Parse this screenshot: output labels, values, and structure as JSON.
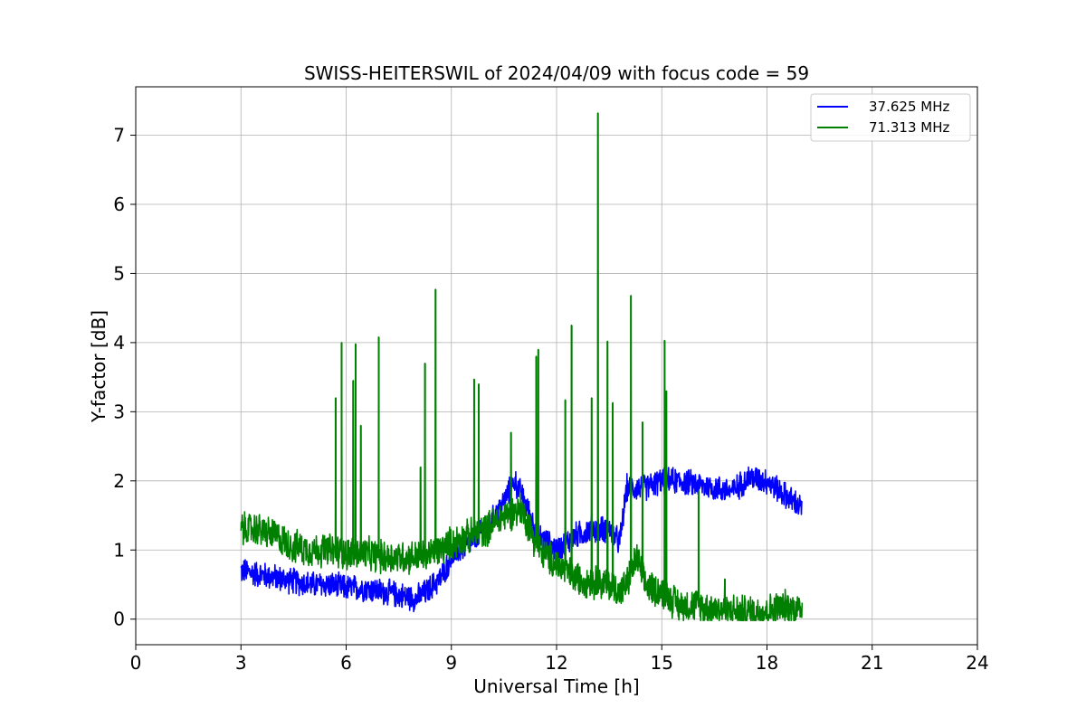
{
  "chart_data": {
    "type": "line",
    "title": "SWISS-HEITERSWIL of 2024/04/09 with focus code = 59",
    "xlabel": "Universal Time [h]",
    "ylabel": "Y-factor [dB]",
    "xlim": [
      0,
      24
    ],
    "ylim": [
      -0.37,
      7.7
    ],
    "xticks": [
      0,
      3,
      6,
      9,
      12,
      15,
      18,
      21,
      24
    ],
    "yticks": [
      0,
      1,
      2,
      3,
      4,
      5,
      6,
      7
    ],
    "grid": true,
    "legend_position": "top-right",
    "series": [
      {
        "name": "37.625 MHz",
        "color": "#0000ff",
        "x": [
          3.0,
          3.5,
          4.0,
          4.5,
          5.0,
          5.5,
          6.0,
          6.5,
          7.0,
          7.5,
          8.0,
          8.3,
          8.7,
          9.0,
          9.5,
          10.0,
          10.5,
          10.8,
          11.0,
          11.5,
          12.0,
          12.5,
          13.0,
          13.5,
          13.8,
          14.0,
          14.5,
          15.0,
          15.5,
          16.0,
          16.5,
          17.0,
          17.5,
          18.0,
          18.5,
          19.0
        ],
        "y": [
          0.7,
          0.65,
          0.6,
          0.55,
          0.5,
          0.5,
          0.45,
          0.45,
          0.4,
          0.35,
          0.3,
          0.4,
          0.6,
          0.9,
          1.1,
          1.3,
          1.7,
          2.0,
          1.8,
          1.2,
          1.0,
          1.2,
          1.3,
          1.3,
          1.1,
          1.9,
          1.9,
          2.0,
          2.0,
          1.95,
          1.9,
          1.85,
          2.05,
          2.0,
          1.8,
          1.6
        ]
      },
      {
        "name": "71.313 MHz",
        "color": "#008000",
        "x": [
          3.0,
          3.5,
          4.0,
          4.5,
          5.0,
          5.5,
          6.0,
          6.5,
          7.0,
          7.5,
          8.0,
          8.5,
          9.0,
          9.5,
          10.0,
          10.5,
          11.0,
          11.5,
          12.0,
          12.5,
          13.0,
          13.5,
          13.8,
          14.0,
          14.3,
          14.5,
          15.0,
          15.5,
          16.0,
          16.5,
          17.0,
          17.5,
          18.0,
          18.5,
          19.0
        ],
        "y": [
          1.3,
          1.3,
          1.2,
          1.05,
          1.0,
          1.0,
          0.95,
          0.95,
          0.9,
          0.9,
          0.9,
          0.95,
          1.1,
          1.2,
          1.3,
          1.5,
          1.6,
          1.0,
          0.8,
          0.6,
          0.55,
          0.5,
          0.4,
          0.5,
          0.9,
          0.5,
          0.4,
          0.2,
          0.2,
          0.15,
          0.12,
          0.1,
          0.12,
          0.18,
          0.15
        ]
      }
    ],
    "spikes_71mhz": [
      {
        "x": 5.7,
        "y": 3.2
      },
      {
        "x": 5.87,
        "y": 4.0
      },
      {
        "x": 6.2,
        "y": 3.45
      },
      {
        "x": 6.27,
        "y": 3.98
      },
      {
        "x": 6.42,
        "y": 2.8
      },
      {
        "x": 6.93,
        "y": 4.08
      },
      {
        "x": 8.12,
        "y": 2.2
      },
      {
        "x": 8.25,
        "y": 3.7
      },
      {
        "x": 8.55,
        "y": 4.77
      },
      {
        "x": 9.65,
        "y": 3.47
      },
      {
        "x": 9.78,
        "y": 3.4
      },
      {
        "x": 10.7,
        "y": 2.7
      },
      {
        "x": 11.42,
        "y": 3.8
      },
      {
        "x": 11.48,
        "y": 3.9
      },
      {
        "x": 12.25,
        "y": 3.17
      },
      {
        "x": 12.43,
        "y": 4.25
      },
      {
        "x": 13.0,
        "y": 3.2
      },
      {
        "x": 13.18,
        "y": 7.32
      },
      {
        "x": 13.45,
        "y": 4.02
      },
      {
        "x": 13.6,
        "y": 3.13
      },
      {
        "x": 14.12,
        "y": 4.68
      },
      {
        "x": 14.45,
        "y": 2.85
      },
      {
        "x": 15.08,
        "y": 4.03
      },
      {
        "x": 15.13,
        "y": 3.3
      },
      {
        "x": 16.05,
        "y": 1.85
      },
      {
        "x": 16.8,
        "y": 0.58
      }
    ]
  }
}
